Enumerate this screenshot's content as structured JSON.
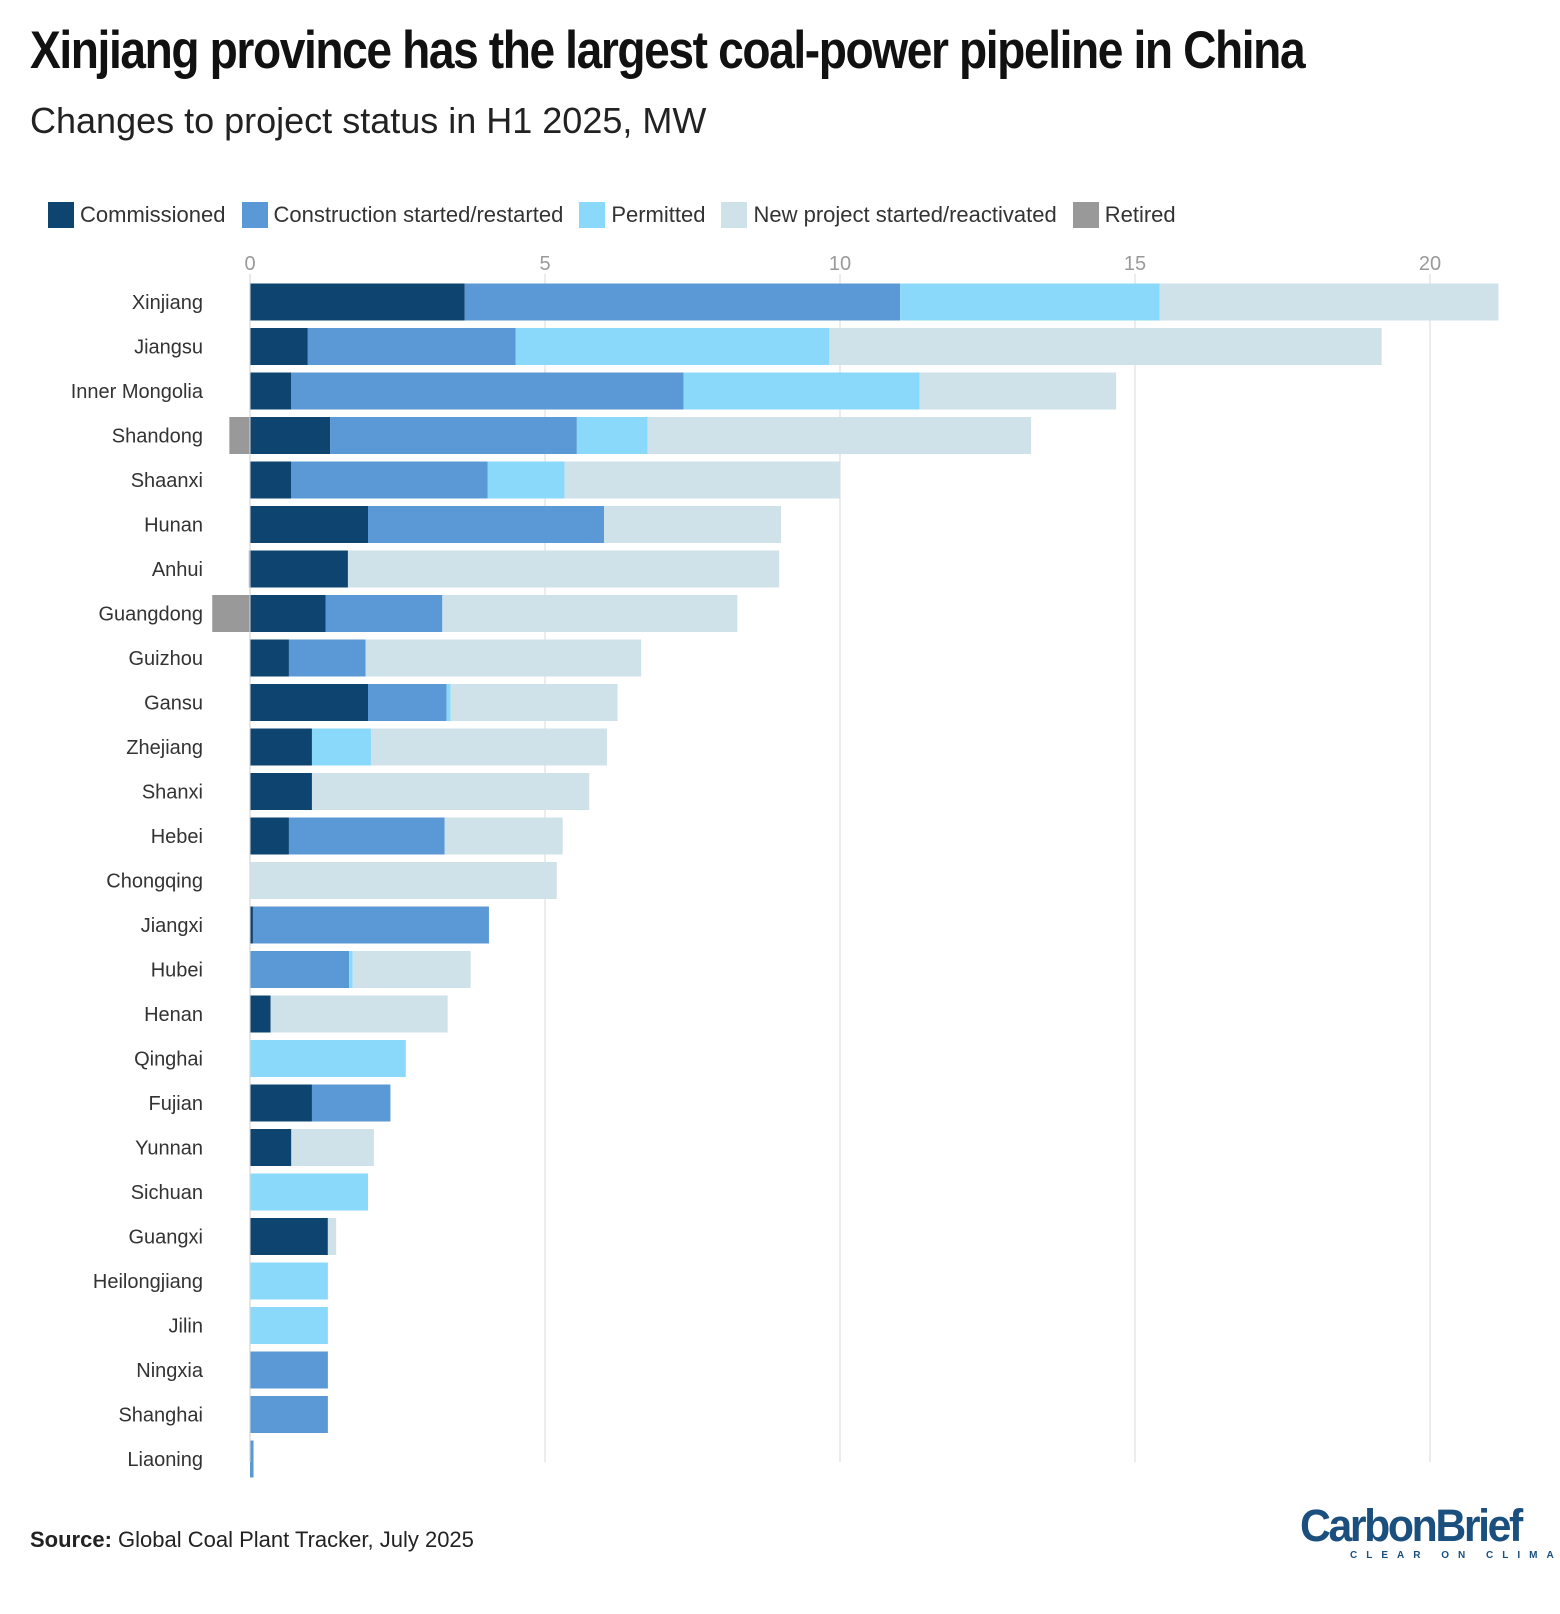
{
  "header": {
    "title": "Xinjiang province has the largest coal-power pipeline in China",
    "subtitle": "Changes to project status in H1 2025, MW"
  },
  "legend": [
    {
      "label": "Commissioned",
      "color": "#0d4470"
    },
    {
      "label": "Construction started/restarted",
      "color": "#5b99d6"
    },
    {
      "label": "Permitted",
      "color": "#8ad9fb"
    },
    {
      "label": "New project started/reactivated",
      "color": "#cfe2ea"
    },
    {
      "label": "Retired",
      "color": "#999999"
    }
  ],
  "footer": {
    "source_label": "Source:",
    "source_text": "Global Coal Plant Tracker, July 2025"
  },
  "logo": {
    "name": "CarbonBrief",
    "tagline": "CLEAR ON CLIMATE"
  },
  "chart_data": {
    "type": "bar",
    "orientation": "horizontal",
    "stacked": true,
    "xlim": [
      -0.6,
      21.2
    ],
    "x_ticks": [
      0,
      5,
      10,
      15,
      20
    ],
    "grid": true,
    "legend_position": "top",
    "categories": [
      "Xinjiang",
      "Jiangsu",
      "Inner Mongolia",
      "Shandong",
      "Shaanxi",
      "Hunan",
      "Anhui",
      "Guangdong",
      "Guizhou",
      "Gansu",
      "Zhejiang",
      "Shanxi",
      "Hebei",
      "Chongqing",
      "Jiangxi",
      "Hubei",
      "Henan",
      "Qinghai",
      "Fujian",
      "Yunnan",
      "Sichuan",
      "Guangxi",
      "Heilongjiang",
      "Jilin",
      "Ningxia",
      "Shanghai",
      "Liaoning"
    ],
    "series": [
      {
        "name": "Commissioned",
        "color": "#0d4470",
        "values": [
          3.64,
          0.98,
          0.7,
          1.36,
          0.7,
          2.0,
          1.66,
          1.28,
          0.66,
          2.0,
          1.05,
          1.05,
          0.66,
          0,
          0.05,
          0,
          0.35,
          0,
          1.05,
          0.7,
          0,
          1.32,
          0,
          0,
          0,
          0,
          0
        ]
      },
      {
        "name": "Construction started/restarted",
        "color": "#5b99d6",
        "values": [
          7.38,
          3.52,
          6.65,
          4.18,
          3.33,
          4.0,
          0,
          1.98,
          1.3,
          1.33,
          0,
          0,
          2.64,
          0,
          4.0,
          1.68,
          0,
          0,
          1.33,
          0,
          0,
          0,
          0,
          0,
          1.32,
          1.32,
          0.06
        ]
      },
      {
        "name": "Permitted",
        "color": "#8ad9fb",
        "values": [
          4.4,
          5.32,
          4.0,
          1.2,
          1.3,
          0,
          0,
          0,
          0,
          0.07,
          1.0,
          0,
          0,
          0,
          0,
          0.06,
          0,
          2.64,
          0,
          0,
          2.0,
          0,
          1.32,
          1.32,
          0,
          0,
          0
        ]
      },
      {
        "name": "New project started/reactivated",
        "color": "#cfe2ea",
        "values": [
          5.74,
          9.36,
          3.33,
          6.5,
          4.67,
          3.0,
          7.31,
          5.0,
          4.67,
          2.83,
          4.0,
          4.7,
          2.0,
          5.2,
          0,
          2.0,
          3.0,
          0,
          0,
          1.4,
          0,
          0.14,
          0,
          0,
          0,
          0,
          0
        ]
      },
      {
        "name": "Retired",
        "color": "#999999",
        "values": [
          0,
          0,
          0,
          -0.35,
          0,
          0,
          -0.02,
          -0.64,
          0,
          0,
          0,
          0,
          0,
          0,
          0,
          0,
          0,
          0,
          0,
          0,
          0,
          0,
          0,
          0,
          0,
          0,
          0
        ]
      }
    ]
  }
}
